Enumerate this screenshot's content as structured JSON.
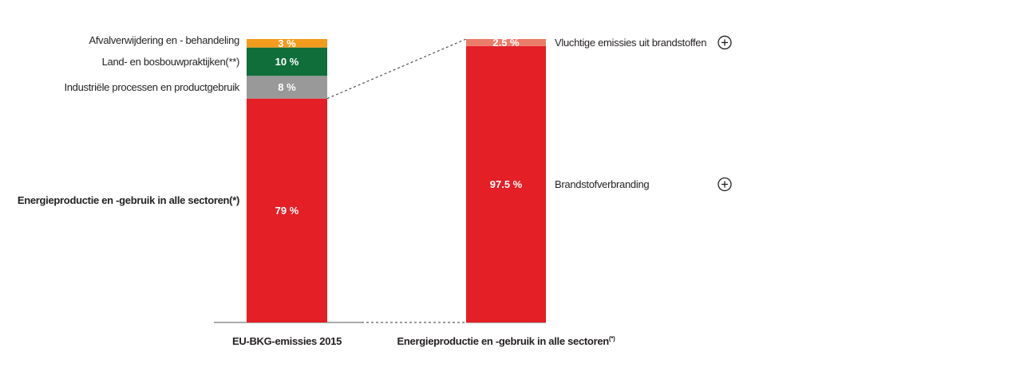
{
  "chart_data": {
    "type": "bar",
    "stacked": true,
    "bars": [
      {
        "category": "EU-BKG-emissies 2015",
        "segments": [
          {
            "name": "Energieproductie en -gebruik in alle sectoren(*)",
            "value": 79,
            "label": "79 %",
            "color": "#e41f26"
          },
          {
            "name": "Industriële processen en productgebruik",
            "value": 8,
            "label": "8 %",
            "color": "#999999"
          },
          {
            "name": "Land- en bosbouwpraktijken(**)",
            "value": 10,
            "label": "10 %",
            "color": "#106e3a"
          },
          {
            "name": "Afvalverwijdering en - behandeling",
            "value": 3,
            "label": "3 %",
            "color": "#f39b1c"
          }
        ]
      },
      {
        "category": "Energieproductie en -gebruik in alle sectoren",
        "category_sup": "(*)",
        "segments": [
          {
            "name": "Brandstofverbranding",
            "value": 97.5,
            "label": "97.5 %",
            "color": "#e41f26"
          },
          {
            "name": "Vluchtige emissies uit brandstoffen",
            "value": 2.5,
            "label": "2.5 %",
            "color": "#ec7c6a"
          }
        ]
      }
    ],
    "expandable_segments": [
      "Vluchtige emissies uit brandstoffen",
      "Brandstofverbranding"
    ],
    "ylim": [
      0,
      100
    ],
    "grid": false,
    "legend": "none",
    "title": "",
    "xlabel": "",
    "ylabel": ""
  }
}
